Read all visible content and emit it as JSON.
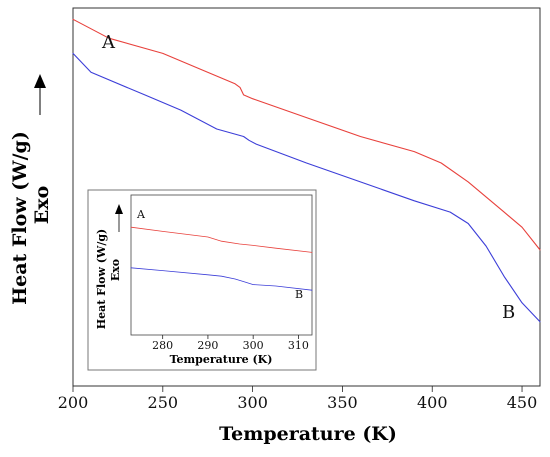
{
  "chart_data": [
    {
      "type": "line",
      "title": "",
      "xlabel": "Temperature (K)",
      "ylabel": "Heat Flow (W/g)",
      "ylabel_sub": "Exo",
      "xlim": [
        200,
        460
      ],
      "xticks": [
        200,
        250,
        300,
        350,
        400,
        450
      ],
      "ylim": [
        0,
        100
      ],
      "y_ticks_labeled": false,
      "exo_direction": "up",
      "grid": false,
      "series": [
        {
          "label": "A",
          "color": "#e8413c",
          "points": [
            [
              200,
              97
            ],
            [
              220,
              92
            ],
            [
              250,
              88
            ],
            [
              270,
              84
            ],
            [
              290,
              80
            ],
            [
              293,
              79
            ],
            [
              295,
              77
            ],
            [
              300,
              76
            ],
            [
              330,
              71
            ],
            [
              360,
              66
            ],
            [
              390,
              62
            ],
            [
              405,
              59
            ],
            [
              420,
              54
            ],
            [
              440,
              46
            ],
            [
              450,
              42
            ],
            [
              460,
              36
            ]
          ]
        },
        {
          "label": "B",
          "color": "#3c3ed8",
          "points": [
            [
              200,
              88
            ],
            [
              210,
              83
            ],
            [
              240,
              77
            ],
            [
              260,
              73
            ],
            [
              280,
              68
            ],
            [
              295,
              66
            ],
            [
              298,
              65
            ],
            [
              302,
              64
            ],
            [
              330,
              59
            ],
            [
              360,
              54
            ],
            [
              390,
              49
            ],
            [
              410,
              46
            ],
            [
              420,
              43
            ],
            [
              430,
              37
            ],
            [
              440,
              29
            ],
            [
              450,
              22
            ],
            [
              460,
              17
            ]
          ]
        }
      ]
    },
    {
      "type": "line",
      "title": "",
      "xlabel": "Temperature (K)",
      "ylabel": "Heat Flow (W/g)",
      "ylabel_sub": "Exo",
      "xlim": [
        273,
        313
      ],
      "xticks": [
        280,
        290,
        300,
        310
      ],
      "ylim": [
        0,
        100
      ],
      "y_ticks_labeled": false,
      "exo_direction": "up",
      "grid": false,
      "series": [
        {
          "label": "A",
          "color": "#e8413c",
          "points": [
            [
              273,
              77
            ],
            [
              280,
              74
            ],
            [
              290,
              70
            ],
            [
              293,
              67
            ],
            [
              297,
              65
            ],
            [
              300,
              64
            ],
            [
              305,
              62
            ],
            [
              313,
              59
            ]
          ]
        },
        {
          "label": "B",
          "color": "#3c3ed8",
          "points": [
            [
              273,
              48
            ],
            [
              280,
              46
            ],
            [
              290,
              43
            ],
            [
              293,
              42
            ],
            [
              296,
              40
            ],
            [
              298,
              38
            ],
            [
              300,
              36
            ],
            [
              305,
              35
            ],
            [
              313,
              32
            ]
          ]
        }
      ]
    }
  ]
}
